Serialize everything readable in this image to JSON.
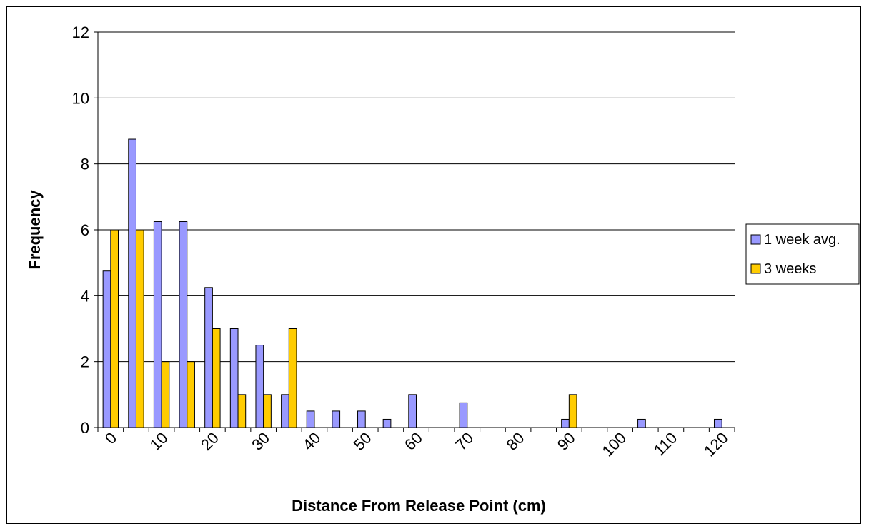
{
  "chart_data": {
    "type": "bar",
    "title": "",
    "xlabel": "Distance From Release Point (cm)",
    "ylabel": "Frequency",
    "ylim": [
      0,
      12
    ],
    "yticks": [
      0,
      2,
      4,
      6,
      8,
      10,
      12
    ],
    "grid": true,
    "legend_position": "right",
    "categories": [
      0,
      5,
      10,
      15,
      20,
      25,
      30,
      35,
      40,
      45,
      50,
      55,
      60,
      65,
      70,
      75,
      80,
      85,
      90,
      95,
      100,
      105,
      110,
      115,
      120
    ],
    "tick_labels": [
      "0",
      "10",
      "20",
      "30",
      "40",
      "50",
      "60",
      "70",
      "80",
      "90",
      "100",
      "110",
      "120"
    ],
    "series": [
      {
        "name": "1 week avg.",
        "color": "#9999ff",
        "values": [
          4.75,
          8.75,
          6.25,
          6.25,
          4.25,
          3,
          2.5,
          1,
          0.5,
          0.5,
          0.5,
          0.25,
          1,
          0,
          0.75,
          0,
          0,
          0,
          0.25,
          0,
          0,
          0.25,
          0,
          0,
          0.25
        ]
      },
      {
        "name": "3 weeks",
        "color": "#ffcc00",
        "values": [
          6,
          6,
          2,
          2,
          3,
          1,
          1,
          3,
          0,
          0,
          0,
          0,
          0,
          0,
          0,
          0,
          0,
          0,
          1,
          0,
          0,
          0,
          0,
          0,
          0
        ]
      }
    ]
  }
}
